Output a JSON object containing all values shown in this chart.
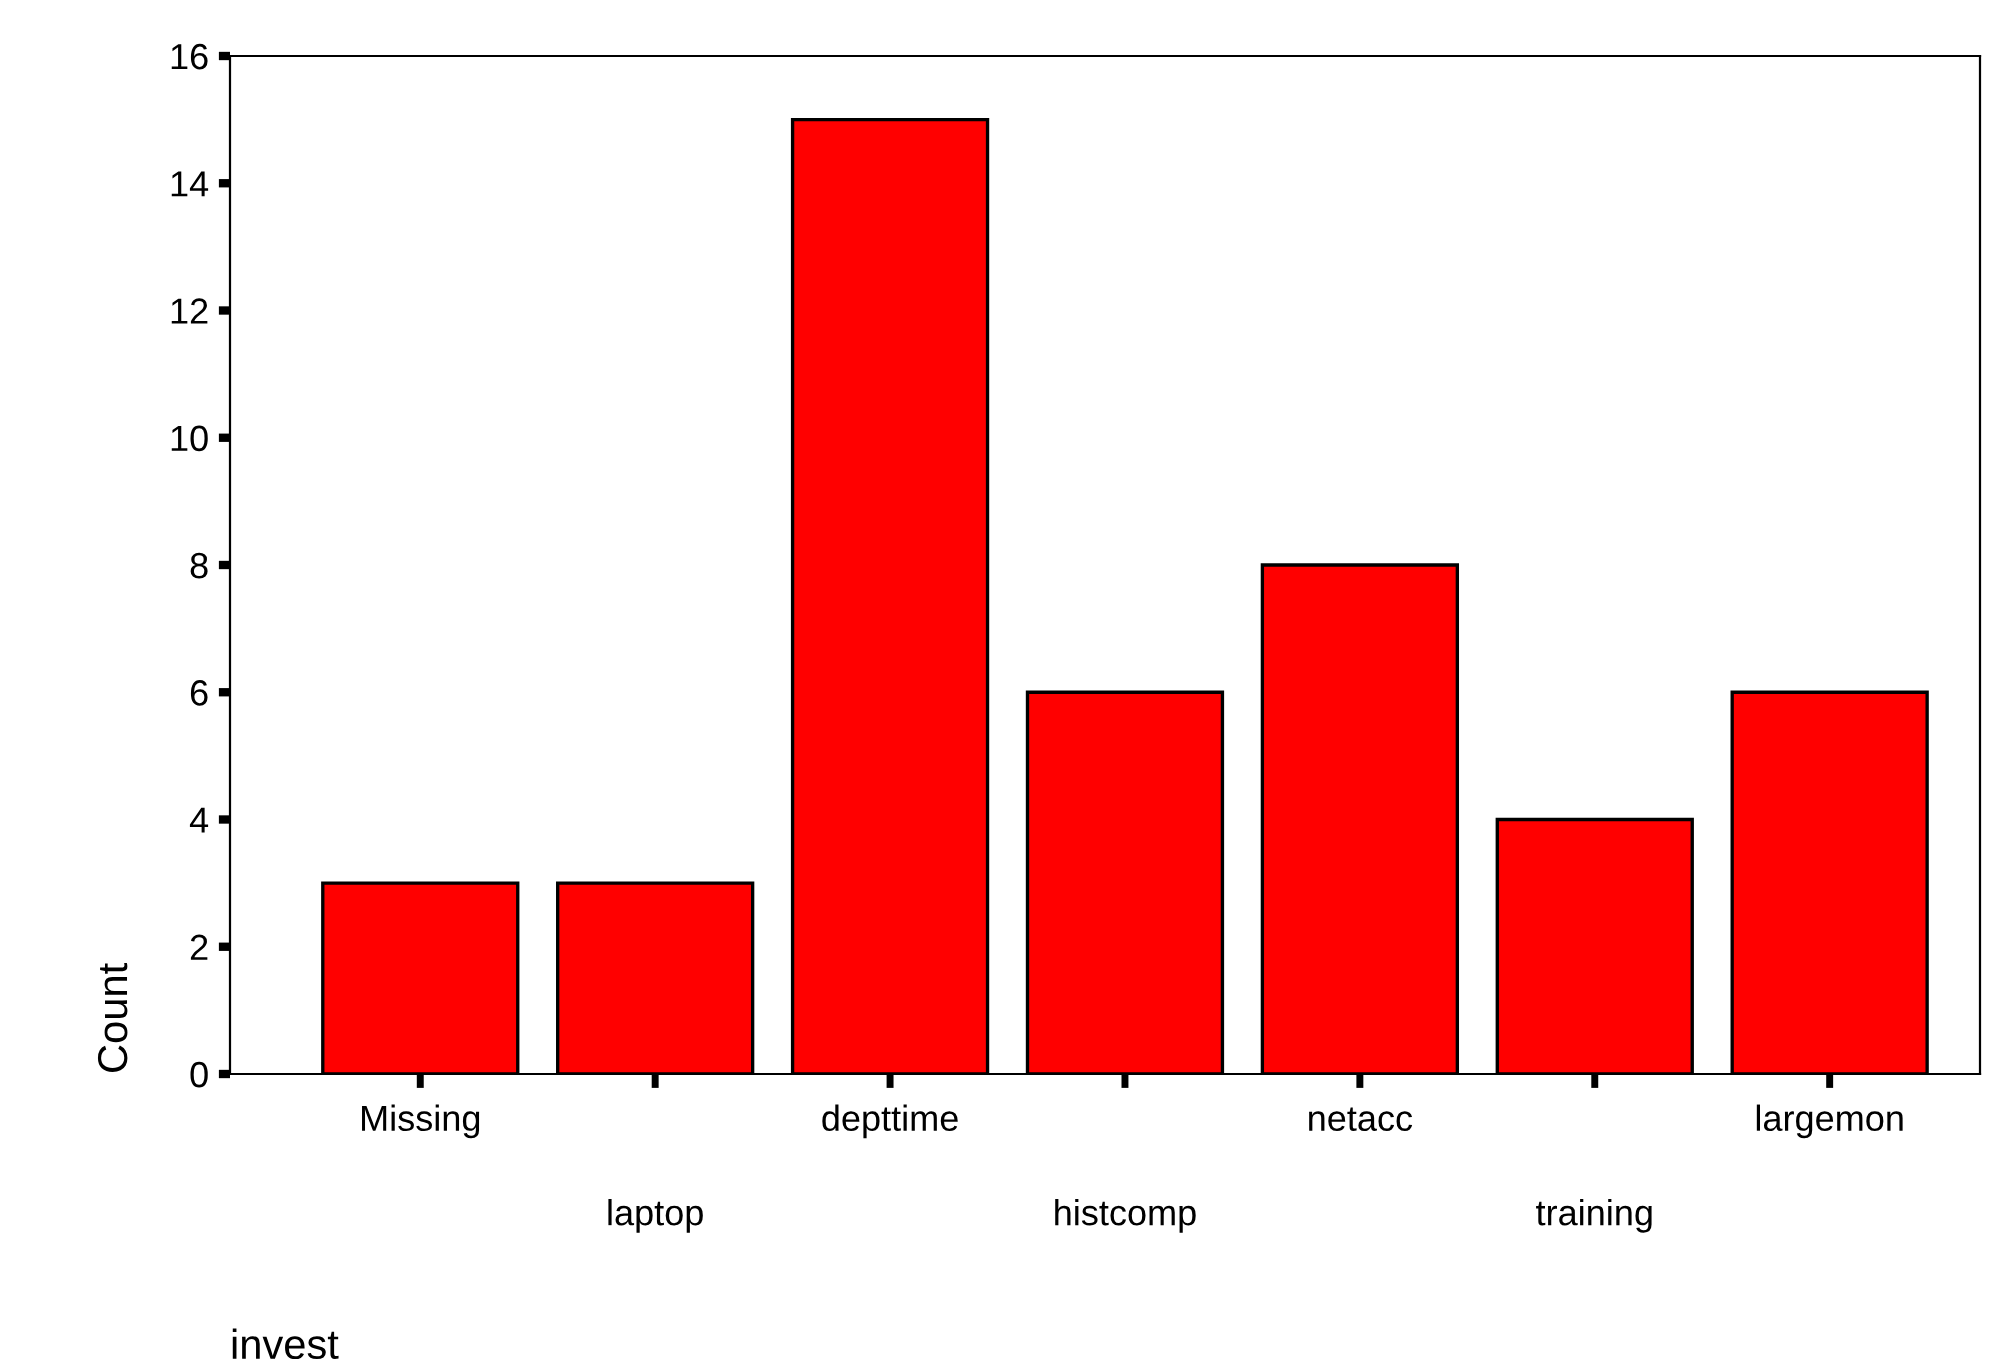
{
  "chart_data": {
    "type": "bar",
    "xlabel": "invest",
    "ylabel": "Count",
    "categories": [
      "Missing",
      "laptop",
      "depttime",
      "histcomp",
      "netacc",
      "training",
      "largemon"
    ],
    "values": [
      3,
      3,
      15,
      6,
      8,
      4,
      6
    ],
    "color": "#ff0000",
    "ylim": [
      0,
      16
    ],
    "yticks": [
      0,
      2,
      4,
      6,
      8,
      10,
      12,
      14,
      16
    ],
    "grid": false,
    "legend": false
  }
}
